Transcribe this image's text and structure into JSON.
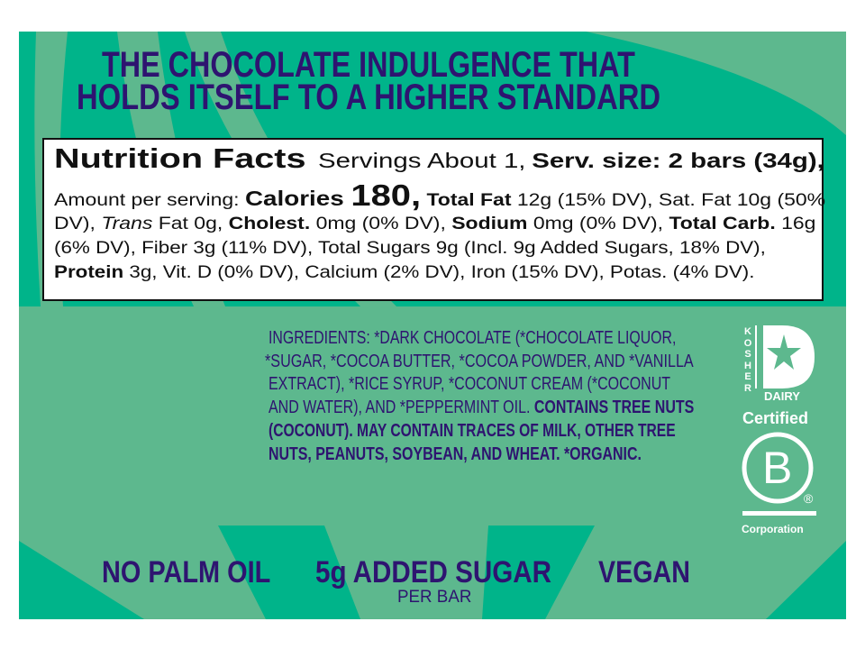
{
  "colors": {
    "dark_green": "#00b48a",
    "light_green": "#5db88e",
    "purple": "#2e1470",
    "white": "#ffffff",
    "black": "#111111"
  },
  "headline": {
    "line1": "THE CHOCOLATE INDULGENCE THAT",
    "line2": "HOLDS ITSELF TO A HIGHER STANDARD"
  },
  "nutrition": {
    "title": "Nutrition Facts",
    "servings": "Servings About 1,",
    "serv_size": "Serv. size: 2 bars (34g),",
    "line1": {
      "a": "Amount per serving: ",
      "calories_label": "Calories ",
      "calories_value": "180,",
      "b": " Total Fat",
      "c": " 12g (15% DV), Sat. Fat 10g (50%"
    },
    "line2": {
      "a": "DV), ",
      "trans": "Trans",
      "b": " Fat 0g, ",
      "cholest": "Cholest.",
      "c": " 0mg (0% DV), ",
      "sodium": "Sodium",
      "d": " 0mg (0% DV), ",
      "carb": "Total Carb.",
      "e": " 16g"
    },
    "line3": "(6% DV), Fiber 3g (11% DV), Total Sugars 9g (Incl. 9g Added Sugars, 18% DV),",
    "line4": {
      "protein": "Protein",
      "rest": " 3g, Vit. D (0% DV), Calcium (2% DV), Iron (15% DV), Potas. (4% DV)."
    }
  },
  "ingredients": {
    "line1": "INGREDIENTS: *DARK CHOCOLATE (*CHOCOLATE LIQUOR,",
    "line2": "*SUGAR, *COCOA BUTTER, *COCOA POWDER, AND *VANILLA",
    "line3": "EXTRACT), *RICE SYRUP, *COCONUT CREAM (*COCONUT",
    "line4a": "AND WATER), AND *PEPPERMINT OIL. ",
    "line4b": "CONTAINS TREE NUTS",
    "line5": "(COCONUT). MAY CONTAIN TRACES OF MILK, OTHER TREE",
    "line6": "NUTS, PEANUTS, SOYBEAN, AND WHEAT. *ORGANIC."
  },
  "kosher": {
    "letters": [
      "K",
      "O",
      "S",
      "H",
      "E",
      "R"
    ],
    "dairy": "DAIRY",
    "icon": "star-icon"
  },
  "bcorp": {
    "certified": "Certified",
    "letter": "B",
    "registered": "®",
    "corporation": "Corporation"
  },
  "claims": {
    "no_palm": "NO PALM OIL",
    "sugar": "5g ADDED SUGAR",
    "per_bar": "PER BAR",
    "vegan": "VEGAN"
  }
}
